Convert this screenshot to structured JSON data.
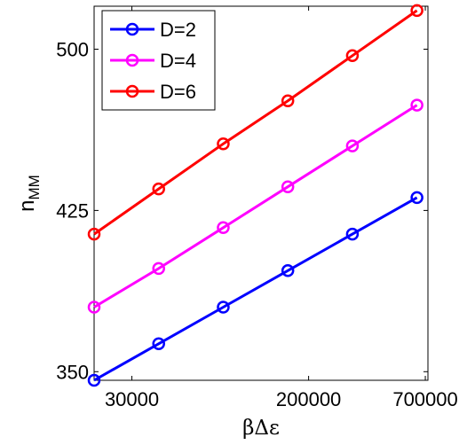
{
  "chart_data": {
    "type": "line",
    "title": "",
    "xlabel": "βΔε",
    "ylabel_main": "n",
    "ylabel_sub": "MM",
    "x_scale": "log",
    "xlim": [
      20000,
      720000
    ],
    "ylim": [
      346,
      520
    ],
    "x": [
      20000,
      40000,
      80000,
      160000,
      320000,
      640000
    ],
    "x_ticks": [
      30000,
      200000,
      700000
    ],
    "x_tick_labels": [
      "30000",
      "200000",
      "700000"
    ],
    "y_ticks": [
      350,
      425,
      500
    ],
    "y_tick_labels": [
      "350",
      "425",
      "500"
    ],
    "grid": false,
    "legend_position": "top-left",
    "series": [
      {
        "name": "D=2",
        "color": "#0000ff",
        "values": [
          346,
          363,
          380,
          397,
          414,
          431
        ]
      },
      {
        "name": "D=4",
        "color": "#ff00ff",
        "values": [
          380,
          398,
          417,
          436,
          455,
          474
        ]
      },
      {
        "name": "D=6",
        "color": "#ff0000",
        "values": [
          414,
          435,
          456,
          476,
          497,
          518
        ]
      }
    ]
  }
}
